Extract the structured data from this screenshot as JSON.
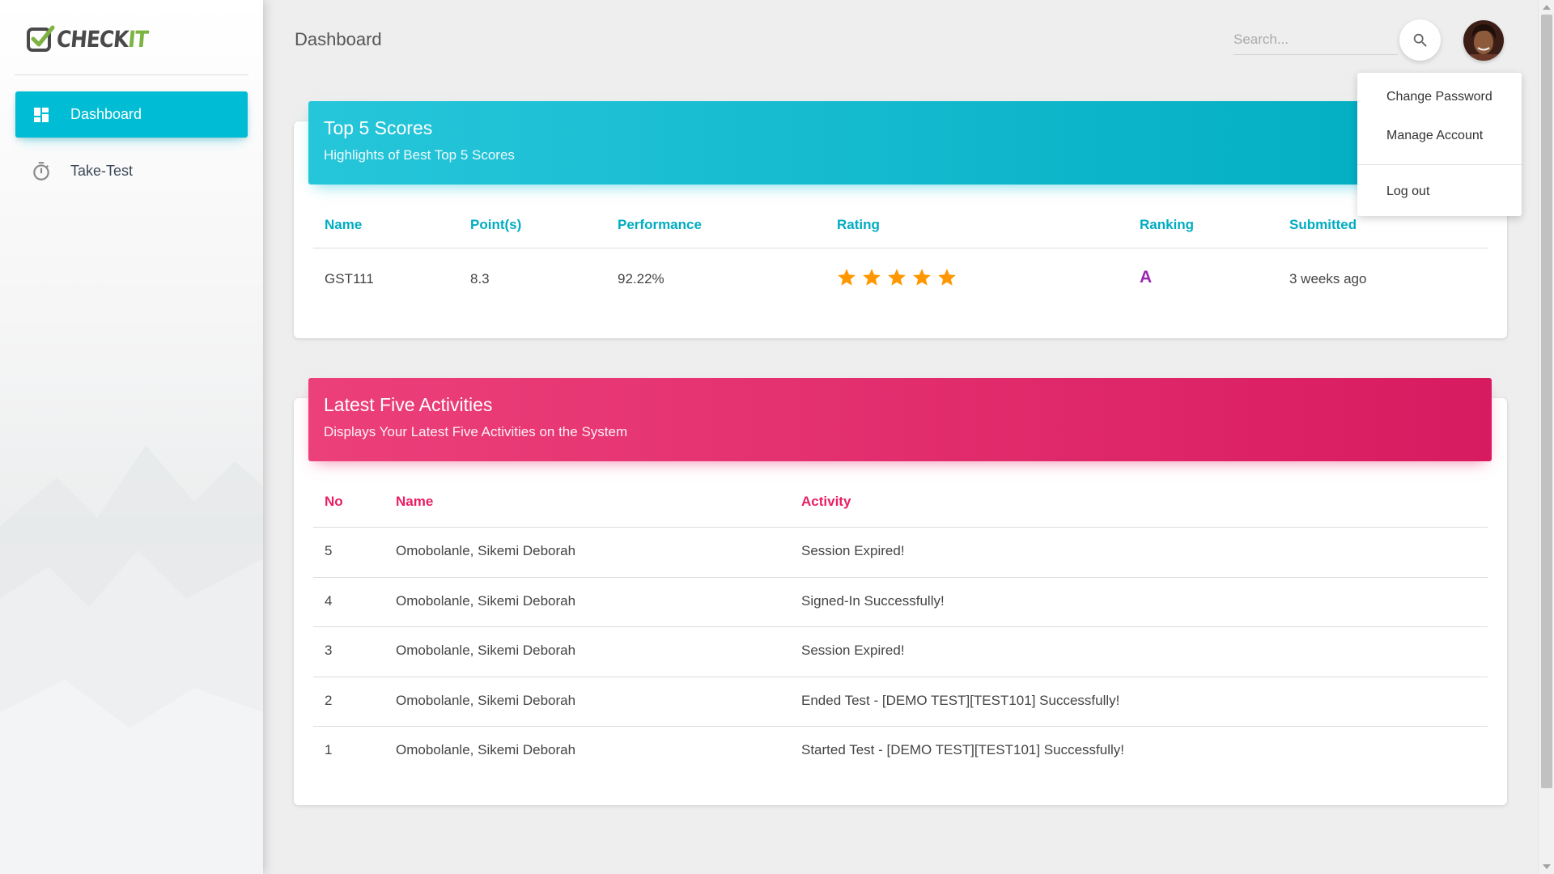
{
  "app": {
    "logo_text_main": "CHECK",
    "logo_text_accent": "IT",
    "accent_color": "#00bcd4",
    "secondary_color": "#e91e63"
  },
  "sidebar": {
    "items": [
      {
        "label": "Dashboard",
        "icon": "dashboard-icon",
        "active": true
      },
      {
        "label": "Take-Test",
        "icon": "timer-icon",
        "active": false
      }
    ]
  },
  "header": {
    "title": "Dashboard",
    "search_placeholder": "Search...",
    "search_icon": "search-icon"
  },
  "user_menu": {
    "items": [
      "Change Password",
      "Manage Account",
      "Log out"
    ]
  },
  "scores_card": {
    "title": "Top 5 Scores",
    "subtitle": "Highlights of Best Top 5 Scores",
    "color": "#00acc1",
    "columns": [
      "Name",
      "Point(s)",
      "Performance",
      "Rating",
      "Ranking",
      "Submitted"
    ],
    "rows": [
      {
        "name": "GST111",
        "points": "8.3",
        "performance": "92.22%",
        "rating_stars": 5,
        "ranking": "A",
        "submitted": "3 weeks ago"
      }
    ]
  },
  "activities_card": {
    "title": "Latest Five Activities",
    "subtitle": "Displays Your Latest Five Activities on the System",
    "color": "#e91e63",
    "columns": [
      "No",
      "Name",
      "Activity"
    ],
    "rows": [
      {
        "no": "5",
        "name": "Omobolanle, Sikemi Deborah",
        "activity": "Session Expired!"
      },
      {
        "no": "4",
        "name": "Omobolanle, Sikemi Deborah",
        "activity": "Signed-In Successfully!"
      },
      {
        "no": "3",
        "name": "Omobolanle, Sikemi Deborah",
        "activity": "Session Expired!"
      },
      {
        "no": "2",
        "name": "Omobolanle, Sikemi Deborah",
        "activity": "Ended Test - [DEMO TEST][TEST101] Successfully!"
      },
      {
        "no": "1",
        "name": "Omobolanle, Sikemi Deborah",
        "activity": "Started Test - [DEMO TEST][TEST101] Successfully!"
      }
    ]
  }
}
